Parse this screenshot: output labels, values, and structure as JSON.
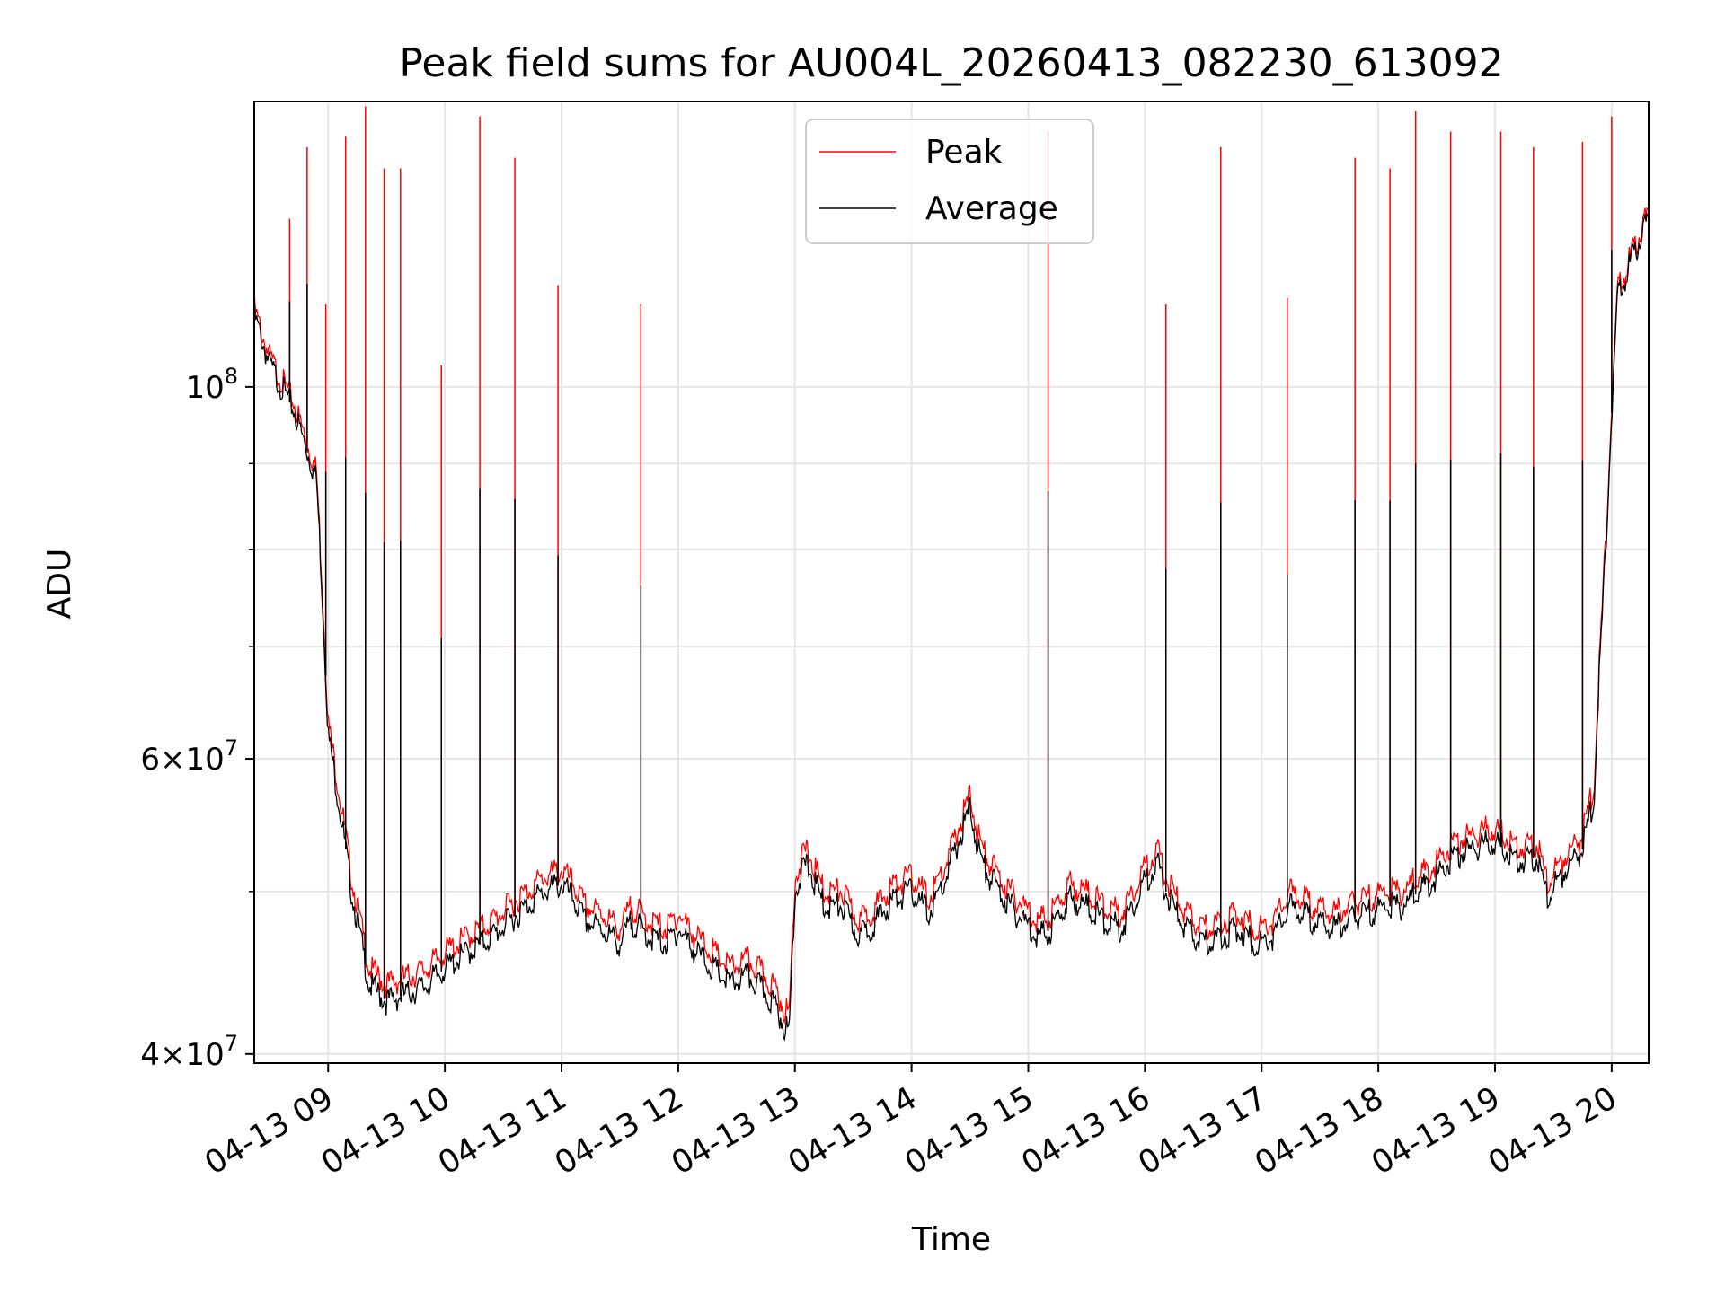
{
  "chart_data": {
    "type": "line",
    "title": "Peak field sums for AU004L_20260413_082230_613092",
    "xlabel": "Time",
    "ylabel": "ADU",
    "yscale": "log",
    "xlim": [
      "04-13 08:22",
      "04-13 20:19"
    ],
    "ylim": [
      39500000,
      148000000
    ],
    "grid": true,
    "legend_position": "upper center",
    "x_ticks": [
      "04-13 09",
      "04-13 10",
      "04-13 11",
      "04-13 12",
      "04-13 13",
      "04-13 14",
      "04-13 15",
      "04-13 16",
      "04-13 17",
      "04-13 18",
      "04-13 19",
      "04-13 20"
    ],
    "y_ticks": [
      {
        "value": 40000000,
        "mantissa": "4",
        "exponent": "7"
      },
      {
        "value": 60000000,
        "mantissa": "6",
        "exponent": "7"
      },
      {
        "value": 100000000,
        "mantissa": "",
        "exponent": "8"
      }
    ],
    "x_time_hours": [
      8.37,
      8.5,
      8.7,
      8.9,
      9.0,
      9.1,
      9.2,
      9.35,
      9.5,
      9.7,
      9.85,
      10.0,
      10.2,
      10.4,
      10.55,
      10.7,
      10.85,
      11.0,
      11.1,
      11.2,
      11.35,
      11.5,
      11.6,
      11.75,
      11.9,
      12.0,
      12.15,
      12.3,
      12.45,
      12.6,
      12.75,
      12.85,
      12.95,
      13.0,
      13.1,
      13.25,
      13.4,
      13.55,
      13.7,
      13.85,
      14.0,
      14.15,
      14.3,
      14.5,
      14.6,
      14.75,
      14.9,
      15.1,
      15.2,
      15.35,
      15.5,
      15.65,
      15.8,
      15.95,
      16.1,
      16.2,
      16.35,
      16.5,
      16.65,
      16.8,
      16.95,
      17.1,
      17.25,
      17.45,
      17.6,
      17.75,
      17.9,
      18.05,
      18.2,
      18.35,
      18.5,
      18.65,
      18.8,
      18.95,
      19.1,
      19.2,
      19.35,
      19.45,
      19.55,
      19.65,
      19.75,
      19.85,
      19.95,
      20.05,
      20.15,
      20.32
    ],
    "series": [
      {
        "name": "Average",
        "color": "#000000",
        "values": [
          110000000,
          103000000,
          97000000,
          88000000,
          62000000,
          56000000,
          50000000,
          44000000,
          43000000,
          43500000,
          44000000,
          45000000,
          46000000,
          47000000,
          48000000,
          49000000,
          50000000,
          50500000,
          49500000,
          48000000,
          47500000,
          46500000,
          48000000,
          47000000,
          46500000,
          47500000,
          46000000,
          45000000,
          44000000,
          44500000,
          43500000,
          42500000,
          41000000,
          50000000,
          52000000,
          49000000,
          49000000,
          47000000,
          48000000,
          49500000,
          50000000,
          48500000,
          51000000,
          56000000,
          52000000,
          50000000,
          48500000,
          47000000,
          47500000,
          49500000,
          49000000,
          48000000,
          47500000,
          50000000,
          52000000,
          49500000,
          47500000,
          46500000,
          47000000,
          47500000,
          46500000,
          47000000,
          49000000,
          48000000,
          47500000,
          48000000,
          48500000,
          49000000,
          49000000,
          50000000,
          51000000,
          52500000,
          53000000,
          53500000,
          53000000,
          52000000,
          52500000,
          49500000,
          51000000,
          52000000,
          53000000,
          57000000,
          80000000,
          113000000,
          118000000,
          126000000
        ]
      },
      {
        "name": "Peak",
        "color": "#ff0000",
        "values": [
          111000000,
          104000000,
          98000000,
          89000000,
          63000000,
          57000000,
          51000000,
          45000000,
          44000000,
          44500000,
          45000000,
          46000000,
          47000000,
          48000000,
          49000000,
          50000000,
          51000000,
          51500000,
          50500000,
          49000000,
          48500000,
          47500000,
          49000000,
          48000000,
          47500000,
          48500000,
          47000000,
          46000000,
          45000000,
          45500000,
          44500000,
          43500000,
          42000000,
          51000000,
          53000000,
          50000000,
          50000000,
          48000000,
          49000000,
          50500000,
          51000000,
          49500000,
          52000000,
          57000000,
          53000000,
          51000000,
          49500000,
          48000000,
          48500000,
          50500000,
          50000000,
          49000000,
          48500000,
          51000000,
          53000000,
          50500000,
          48500000,
          47500000,
          48000000,
          48500000,
          47500000,
          48000000,
          50000000,
          49000000,
          48500000,
          49000000,
          49500000,
          50000000,
          50000000,
          51000000,
          52000000,
          53500000,
          54000000,
          54500000,
          54000000,
          53000000,
          53500000,
          50500000,
          52000000,
          53000000,
          54000000,
          58000000,
          81000000,
          114000000,
          119000000,
          127000000
        ],
        "spikes": [
          {
            "t": 8.67,
            "value": 126000000
          },
          {
            "t": 8.82,
            "value": 139000000
          },
          {
            "t": 8.98,
            "value": 112000000
          },
          {
            "t": 9.15,
            "value": 141000000
          },
          {
            "t": 9.32,
            "value": 147000000
          },
          {
            "t": 9.48,
            "value": 135000000
          },
          {
            "t": 9.62,
            "value": 135000000
          },
          {
            "t": 9.97,
            "value": 103000000
          },
          {
            "t": 10.3,
            "value": 145000000
          },
          {
            "t": 10.6,
            "value": 137000000
          },
          {
            "t": 10.97,
            "value": 115000000
          },
          {
            "t": 11.68,
            "value": 112000000
          },
          {
            "t": 15.17,
            "value": 142000000
          },
          {
            "t": 16.18,
            "value": 112000000
          },
          {
            "t": 16.65,
            "value": 139000000
          },
          {
            "t": 17.22,
            "value": 113000000
          },
          {
            "t": 17.8,
            "value": 137000000
          },
          {
            "t": 18.1,
            "value": 135000000
          },
          {
            "t": 18.32,
            "value": 146000000
          },
          {
            "t": 18.62,
            "value": 142000000
          },
          {
            "t": 19.05,
            "value": 142000000
          },
          {
            "t": 19.33,
            "value": 139000000
          },
          {
            "t": 19.75,
            "value": 140000000
          },
          {
            "t": 20.0,
            "value": 145000000
          }
        ]
      }
    ]
  }
}
